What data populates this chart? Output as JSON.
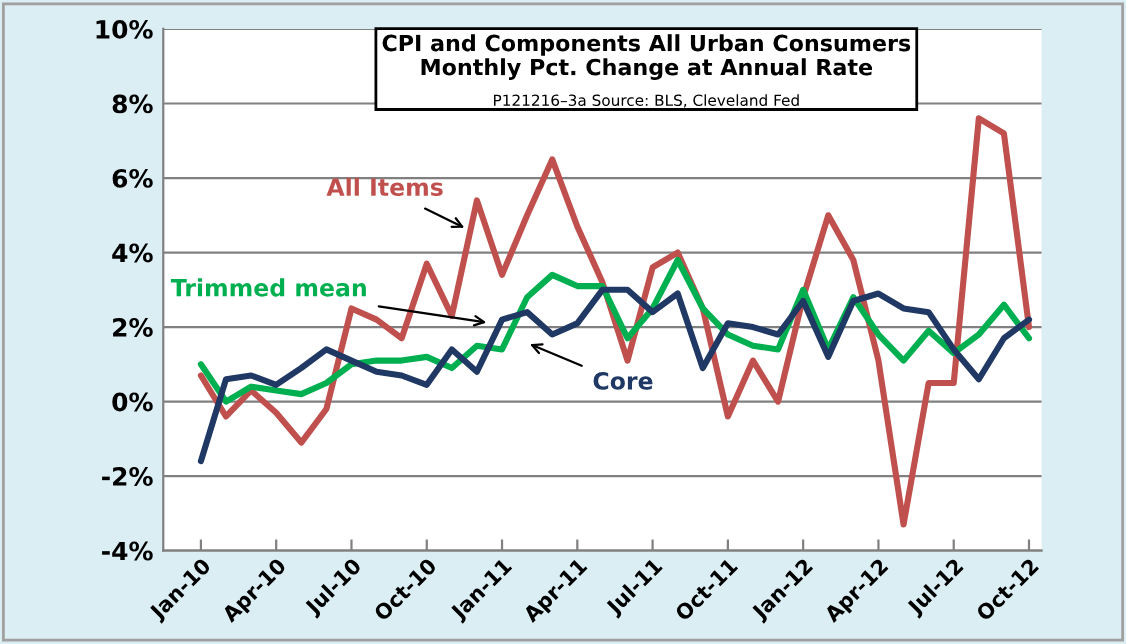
{
  "chart_data": {
    "type": "line",
    "title": "CPI and Components All Urban Consumers\nMonthly Pct. Change at Annual Rate",
    "subtitle": "P121216–3a Source: BLS, Cleveland Fed",
    "categories": [
      "Jan-10",
      null,
      null,
      "Apr-10",
      null,
      null,
      "Jul-10",
      null,
      null,
      "Oct-10",
      null,
      null,
      "Jan-11",
      null,
      null,
      "Apr-11",
      null,
      null,
      "Jul-11",
      null,
      null,
      "Oct-11",
      null,
      null,
      "Jan-12",
      null,
      null,
      "Apr-12",
      null,
      null,
      "Jul-12",
      null,
      null,
      "Oct-12"
    ],
    "series": [
      {
        "name": "All Items",
        "color": "#c0504d",
        "values": [
          0.7,
          -0.4,
          0.3,
          -0.3,
          -1.1,
          -0.2,
          2.5,
          2.2,
          1.7,
          3.7,
          2.3,
          5.4,
          3.4,
          5.0,
          6.5,
          4.7,
          3.2,
          1.1,
          3.6,
          4.0,
          2.5,
          -0.4,
          1.1,
          0.0,
          2.8,
          5.0,
          3.8,
          1.1,
          -3.3,
          0.5,
          0.5,
          7.6,
          7.2,
          2.0
        ]
      },
      {
        "name": "Trimmed mean",
        "color": "#00b050",
        "values": [
          1.0,
          0.0,
          0.4,
          0.3,
          0.2,
          0.5,
          1.0,
          1.1,
          1.1,
          1.2,
          0.9,
          1.5,
          1.4,
          2.8,
          3.4,
          3.1,
          3.1,
          1.7,
          2.5,
          3.8,
          2.5,
          1.8,
          1.5,
          1.4,
          3.0,
          1.4,
          2.8,
          1.8,
          1.1,
          1.9,
          1.3,
          1.8,
          2.6,
          1.7
        ]
      },
      {
        "name": "Core",
        "color": "#1f3864",
        "values": [
          -1.6,
          0.6,
          0.7,
          0.45,
          0.9,
          1.4,
          1.1,
          0.8,
          0.7,
          0.45,
          1.4,
          0.8,
          2.2,
          2.4,
          1.8,
          2.1,
          3.0,
          3.0,
          2.4,
          2.9,
          0.9,
          2.1,
          2.0,
          1.8,
          2.7,
          1.2,
          2.7,
          2.9,
          2.5,
          2.4,
          1.4,
          0.6,
          1.7,
          2.2
        ]
      }
    ],
    "ylim": [
      -4,
      10
    ],
    "yticks": [
      {
        "value": -4,
        "label": "-4%"
      },
      {
        "value": -2,
        "label": "-2%"
      },
      {
        "value": 0,
        "label": "0%"
      },
      {
        "value": 2,
        "label": "2%"
      },
      {
        "value": 4,
        "label": "4%"
      },
      {
        "value": 6,
        "label": "6%"
      },
      {
        "value": 8,
        "label": "8%"
      },
      {
        "value": 10,
        "label": "10%"
      }
    ],
    "grid": "y",
    "legend": false,
    "marker": "none",
    "line_style": "solid"
  }
}
